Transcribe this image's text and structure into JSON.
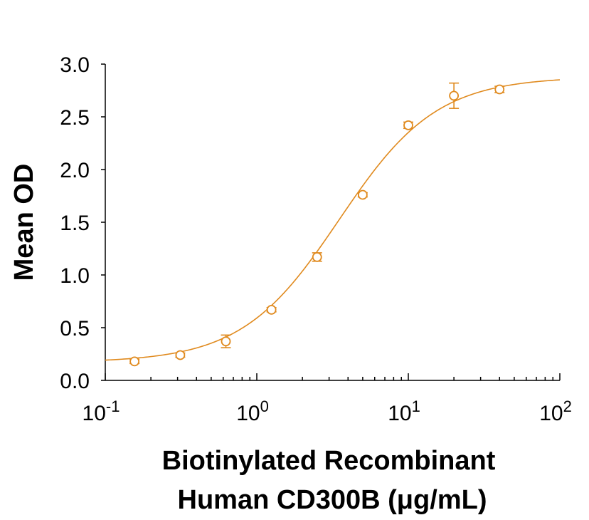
{
  "chart_data": {
    "type": "scatter",
    "title": "",
    "xlabel_lines": [
      "Biotinylated Recombinant",
      "Human CD300B (μg/mL)"
    ],
    "ylabel": "Mean OD",
    "x_scale": "log",
    "xlim": [
      0.1,
      100
    ],
    "ylim": [
      0,
      3.0
    ],
    "y_ticks": [
      "0.0",
      "0.5",
      "1.0",
      "1.5",
      "2.0",
      "2.5",
      "3.0"
    ],
    "x_ticks": [
      {
        "base": "10",
        "exp": "-1",
        "value": 0.1
      },
      {
        "base": "10",
        "exp": "0",
        "value": 1
      },
      {
        "base": "10",
        "exp": "1",
        "value": 10
      },
      {
        "base": "10",
        "exp": "2",
        "value": 100
      }
    ],
    "grid": false,
    "color": "#E08A1E",
    "series": [
      {
        "x": [
          0.156,
          0.3125,
          0.625,
          1.25,
          2.5,
          5,
          10,
          20,
          40
        ],
        "y": [
          0.18,
          0.24,
          0.37,
          0.67,
          1.17,
          1.76,
          2.42,
          2.7,
          2.76
        ],
        "error": [
          0.02,
          0.02,
          0.06,
          0.02,
          0.04,
          0.02,
          0.03,
          0.12,
          0.03
        ]
      }
    ],
    "fit_curve": {
      "model": "4PL",
      "bottom": 0.17,
      "top": 2.88,
      "ec50": 3.5,
      "hill": 1.35
    }
  }
}
